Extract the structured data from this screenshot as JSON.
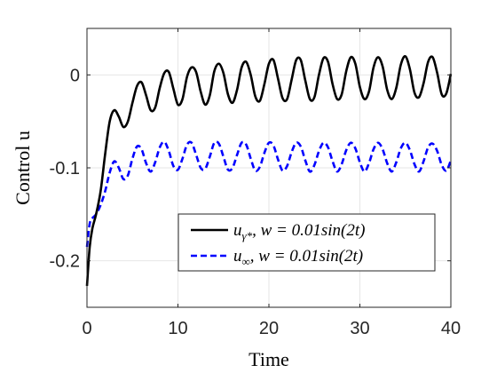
{
  "chart_data": {
    "type": "line",
    "xlabel": "Time",
    "ylabel": "Control u",
    "xlim": [
      0,
      40
    ],
    "ylim": [
      -0.25,
      0.05
    ],
    "xticks": [
      0,
      10,
      20,
      30,
      40
    ],
    "yticks": [
      -0.2,
      -0.1,
      0
    ],
    "xtick_labels": [
      "0",
      "10",
      "20",
      "30",
      "40"
    ],
    "ytick_labels": [
      "-0.2",
      "-0.1",
      "0"
    ],
    "grid": true,
    "legend_position": "lower-right",
    "series": [
      {
        "name": "uγ*, w = 0.01sin(2t)",
        "legend": {
          "base": "u",
          "sub": "γ*",
          "rest": ", w = 0.01sin(2t)"
        },
        "color": "#000000",
        "style": "solid",
        "x": [
          0,
          0.3,
          0.6,
          1.0,
          1.5,
          2.0,
          2.5,
          3.0,
          3.5,
          4.0,
          4.5,
          5.0,
          5.5,
          6.0,
          6.5,
          7.0,
          7.5,
          8.0,
          8.5,
          9.0,
          9.5,
          10.0,
          10.5,
          11.0,
          11.5,
          12.0,
          12.5,
          13.0,
          13.5,
          14.0,
          14.5,
          15.0,
          15.5,
          16.0,
          16.5,
          17.0,
          17.5,
          18.0,
          18.5,
          19.0,
          19.5,
          20.0,
          20.5,
          21.0,
          21.5,
          22.0,
          22.5,
          23.0,
          23.5,
          24.0,
          24.5,
          25.0,
          25.5,
          26.0,
          26.5,
          27.0,
          27.5,
          28.0,
          28.5,
          29.0,
          29.5,
          30.0,
          30.5,
          31.0,
          31.5,
          32.0,
          32.5,
          33.0,
          33.5,
          34.0,
          34.5,
          35.0,
          35.5,
          36.0,
          36.5,
          37.0,
          37.5,
          38.0,
          38.5,
          39.0,
          39.5,
          40.0
        ],
        "y": [
          -0.227,
          -0.185,
          -0.165,
          -0.15,
          -0.125,
          -0.085,
          -0.05,
          -0.038,
          -0.045,
          -0.056,
          -0.05,
          -0.03,
          -0.012,
          -0.008,
          -0.022,
          -0.038,
          -0.035,
          -0.014,
          0.002,
          0.003,
          -0.015,
          -0.032,
          -0.026,
          -0.002,
          0.008,
          0.003,
          -0.018,
          -0.032,
          -0.022,
          0.004,
          0.012,
          0.002,
          -0.021,
          -0.03,
          -0.016,
          0.008,
          0.014,
          0.0,
          -0.023,
          -0.028,
          -0.01,
          0.012,
          0.016,
          -0.004,
          -0.025,
          -0.026,
          -0.005,
          0.016,
          0.016,
          -0.006,
          -0.026,
          -0.024,
          0.0,
          0.018,
          0.014,
          -0.01,
          -0.026,
          -0.021,
          0.004,
          0.019,
          0.012,
          -0.013,
          -0.026,
          -0.018,
          0.008,
          0.019,
          0.009,
          -0.016,
          -0.026,
          -0.014,
          0.011,
          0.02,
          0.006,
          -0.019,
          -0.024,
          -0.009,
          0.014,
          0.019,
          0.002,
          -0.021,
          -0.02,
          0.001
        ]
      },
      {
        "name": "u∞, w = 0.01sin(2t)",
        "legend": {
          "base": "u",
          "sub": "∞",
          "rest": ", w = 0.01sin(2t)"
        },
        "color": "#0000ff",
        "style": "dashed",
        "x": [
          0,
          0.3,
          0.6,
          1.0,
          1.5,
          2.0,
          2.5,
          3.0,
          3.5,
          4.0,
          4.5,
          5.0,
          5.5,
          6.0,
          6.5,
          7.0,
          7.5,
          8.0,
          8.5,
          9.0,
          9.5,
          10.0,
          10.5,
          11.0,
          11.5,
          12.0,
          12.5,
          13.0,
          13.5,
          14.0,
          14.5,
          15.0,
          15.5,
          16.0,
          16.5,
          17.0,
          17.5,
          18.0,
          18.5,
          19.0,
          19.5,
          20.0,
          20.5,
          21.0,
          21.5,
          22.0,
          22.5,
          23.0,
          23.5,
          24.0,
          24.5,
          25.0,
          25.5,
          26.0,
          26.5,
          27.0,
          27.5,
          28.0,
          28.5,
          29.0,
          29.5,
          30.0,
          30.5,
          31.0,
          31.5,
          32.0,
          32.5,
          33.0,
          33.5,
          34.0,
          34.5,
          35.0,
          35.5,
          36.0,
          36.5,
          37.0,
          37.5,
          38.0,
          38.5,
          39.0,
          39.5,
          40.0
        ],
        "y": [
          -0.185,
          -0.16,
          -0.154,
          -0.15,
          -0.14,
          -0.125,
          -0.105,
          -0.093,
          -0.1,
          -0.112,
          -0.108,
          -0.09,
          -0.077,
          -0.08,
          -0.095,
          -0.104,
          -0.094,
          -0.078,
          -0.072,
          -0.082,
          -0.098,
          -0.102,
          -0.09,
          -0.075,
          -0.073,
          -0.086,
          -0.1,
          -0.101,
          -0.088,
          -0.073,
          -0.074,
          -0.088,
          -0.102,
          -0.1,
          -0.086,
          -0.073,
          -0.075,
          -0.09,
          -0.103,
          -0.099,
          -0.084,
          -0.073,
          -0.076,
          -0.091,
          -0.103,
          -0.098,
          -0.083,
          -0.073,
          -0.077,
          -0.092,
          -0.104,
          -0.097,
          -0.082,
          -0.073,
          -0.078,
          -0.093,
          -0.104,
          -0.096,
          -0.081,
          -0.073,
          -0.079,
          -0.094,
          -0.104,
          -0.095,
          -0.08,
          -0.073,
          -0.08,
          -0.095,
          -0.104,
          -0.094,
          -0.079,
          -0.073,
          -0.081,
          -0.096,
          -0.104,
          -0.093,
          -0.078,
          -0.074,
          -0.082,
          -0.097,
          -0.103,
          -0.092
        ]
      }
    ]
  }
}
